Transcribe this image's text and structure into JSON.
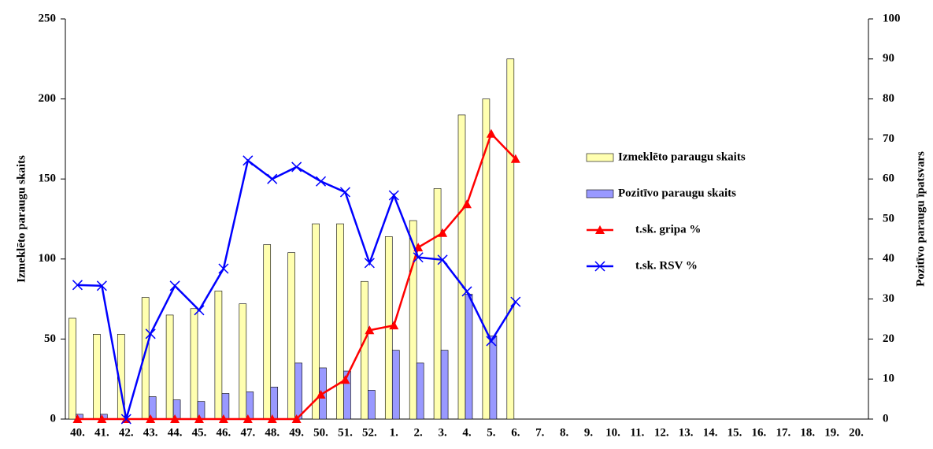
{
  "chart_data": {
    "type": "bar",
    "categories": [
      "40.",
      "41.",
      "42.",
      "43.",
      "44.",
      "45.",
      "46.",
      "47.",
      "48.",
      "49.",
      "50.",
      "51.",
      "52.",
      "1.",
      "2.",
      "3.",
      "4.",
      "5.",
      "6.",
      "7.",
      "8.",
      "9.",
      "10.",
      "11.",
      "12.",
      "13.",
      "14.",
      "15.",
      "16.",
      "17.",
      "18.",
      "19.",
      "20."
    ],
    "series": [
      {
        "name": "Izmeklēto paraugu skaits",
        "type": "bar",
        "color": "#ffffb0",
        "values": [
          63,
          53,
          53,
          76,
          65,
          69,
          80,
          72,
          109,
          104,
          122,
          122,
          86,
          114,
          124,
          144,
          190,
          200,
          225,
          null,
          null,
          null,
          null,
          null,
          null,
          null,
          null,
          null,
          null,
          null,
          null,
          null,
          null
        ]
      },
      {
        "name": "Pozitīvo paraugu skaits",
        "type": "bar",
        "color": "#9999ff",
        "values": [
          3,
          3,
          0,
          14,
          12,
          11,
          16,
          17,
          20,
          35,
          32,
          30,
          18,
          43,
          35,
          43,
          78,
          52,
          null,
          null,
          null,
          null,
          null,
          null,
          null,
          null,
          null,
          null,
          null,
          null,
          null,
          null,
          null
        ]
      },
      {
        "name": "t.sk. gripa %",
        "type": "line",
        "axis": "y2",
        "marker": "triangle",
        "color": "#ff0000",
        "values": [
          0,
          0,
          0,
          0,
          0,
          0,
          0,
          0,
          0,
          0,
          6.1,
          9.8,
          22.2,
          23.4,
          42.9,
          46.5,
          53.7,
          71.3,
          65,
          null,
          null,
          null,
          null,
          null,
          null,
          null,
          null,
          null,
          null,
          null,
          null,
          null,
          null
        ]
      },
      {
        "name": "t.sk. RSV %",
        "type": "line",
        "axis": "y2",
        "marker": "x",
        "color": "#0000ff",
        "values": [
          33.5,
          33.3,
          0,
          21.3,
          33.3,
          27.2,
          37.6,
          64.6,
          60,
          63,
          59.4,
          56.7,
          39,
          55.9,
          40.4,
          39.8,
          31.9,
          19.5,
          29.3,
          null,
          null,
          null,
          null,
          null,
          null,
          null,
          null,
          null,
          null,
          null,
          null,
          null,
          null
        ]
      }
    ],
    "ylabel": "Izmeklēto paraugu skaits",
    "y2label": "Pozitīvo paraugu īpatsvars",
    "ylim": [
      0,
      250
    ],
    "yticks": [
      0,
      50,
      100,
      150,
      200,
      250
    ],
    "y2lim": [
      0,
      100
    ],
    "y2ticks": [
      0,
      10,
      20,
      30,
      40,
      50,
      60,
      70,
      80,
      90,
      100
    ],
    "legend": "right"
  }
}
